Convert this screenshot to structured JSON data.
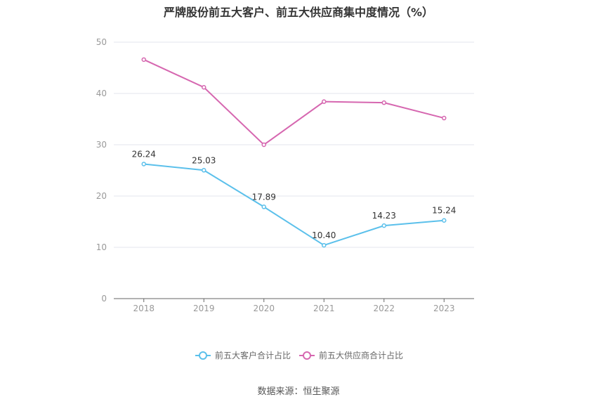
{
  "chart_data": {
    "type": "line",
    "title": "严牌股份前五大客户、前五大供应商集中度情况（%）",
    "categories": [
      "2018",
      "2019",
      "2020",
      "2021",
      "2022",
      "2023"
    ],
    "ylim": [
      0,
      50
    ],
    "yticks": [
      "0",
      "10",
      "20",
      "30",
      "40",
      "50"
    ],
    "grid": true,
    "legend_position": "bottom",
    "series": [
      {
        "name": "前五大客户合计占比",
        "color": "#5bc0eb",
        "values": [
          26.24,
          25.03,
          17.89,
          10.4,
          14.23,
          15.24
        ],
        "labels": [
          "26.24",
          "25.03",
          "17.89",
          "10.40",
          "14.23",
          "15.24"
        ]
      },
      {
        "name": "前五大供应商合计占比",
        "color": "#d667b0",
        "values": [
          46.6,
          41.2,
          30.0,
          38.4,
          38.2,
          35.2
        ]
      }
    ]
  },
  "source": "数据来源：恒生聚源"
}
